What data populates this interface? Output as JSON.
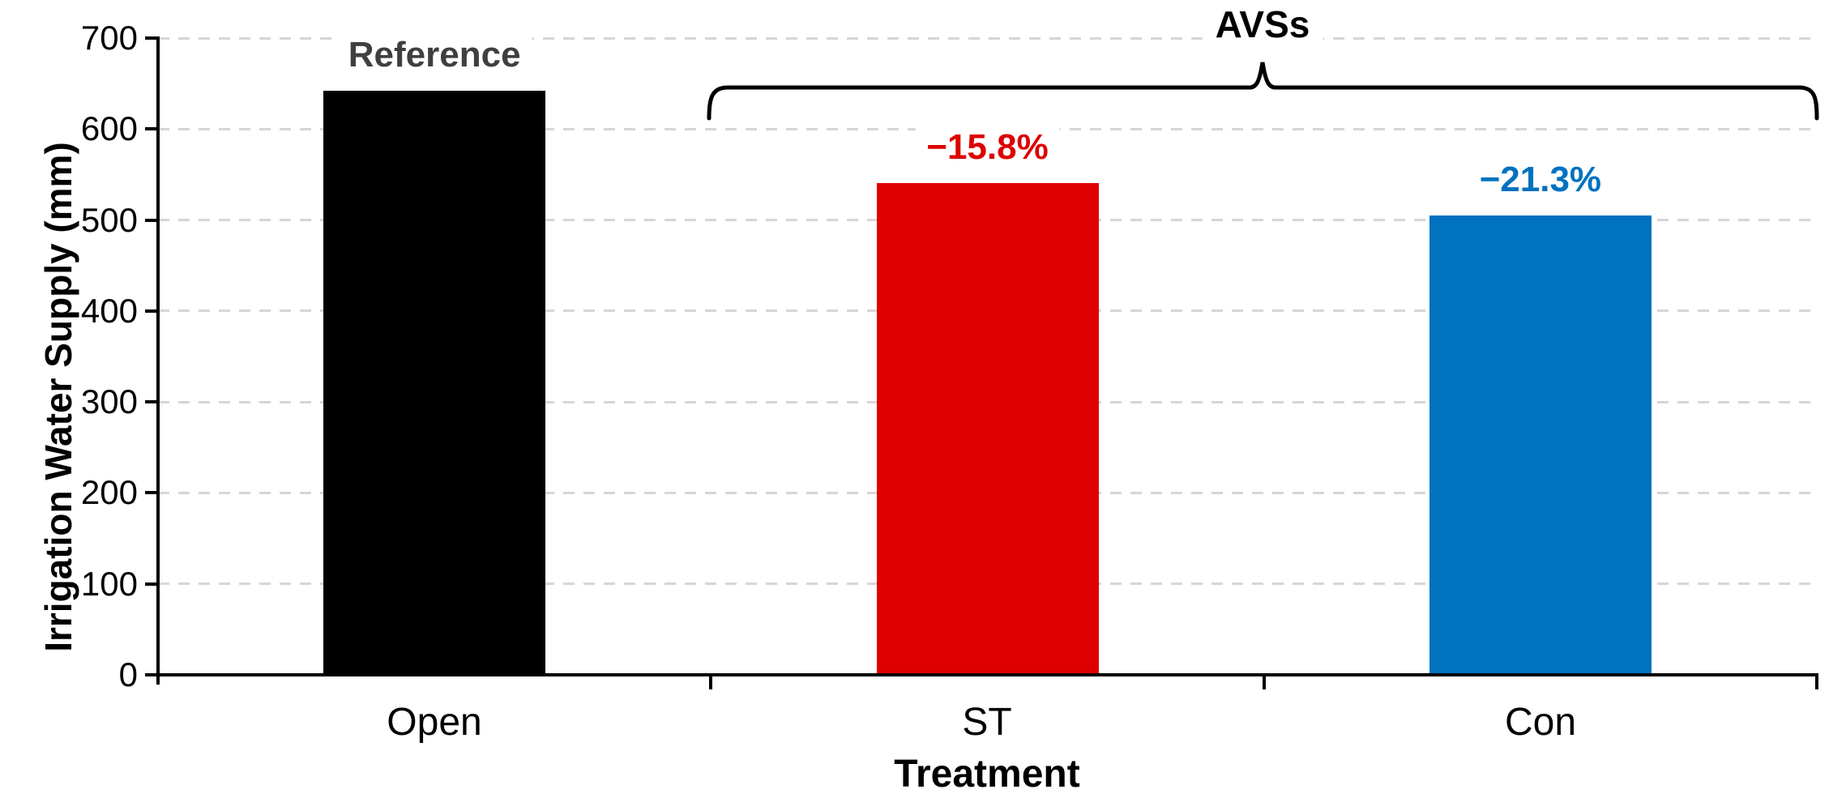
{
  "chart_data": {
    "type": "bar",
    "categories": [
      "Open",
      "ST",
      "Con"
    ],
    "values": [
      642,
      541,
      505
    ],
    "bar_colors": [
      "#000000",
      "#DD0000",
      "#0072C0"
    ],
    "bar_annotations": [
      {
        "text": "Reference",
        "color": "#3F3F3F"
      },
      {
        "text": "−15.8%",
        "color": "#DD0000"
      },
      {
        "text": "−21.3%",
        "color": "#0072C0"
      }
    ],
    "group_annotation": {
      "text": "AVSs",
      "color": "#000000",
      "spans": [
        "ST",
        "Con"
      ]
    },
    "xlabel": "Treatment",
    "ylabel": "Irrigation Water Supply (mm)",
    "ylim": [
      0,
      700
    ],
    "yticks": [
      0,
      100,
      200,
      300,
      400,
      500,
      600,
      700
    ],
    "grid": "horizontal-dashed",
    "gridline_color": "#D6D6D6",
    "axis_color": "#000000",
    "legend": "none",
    "title": ""
  }
}
